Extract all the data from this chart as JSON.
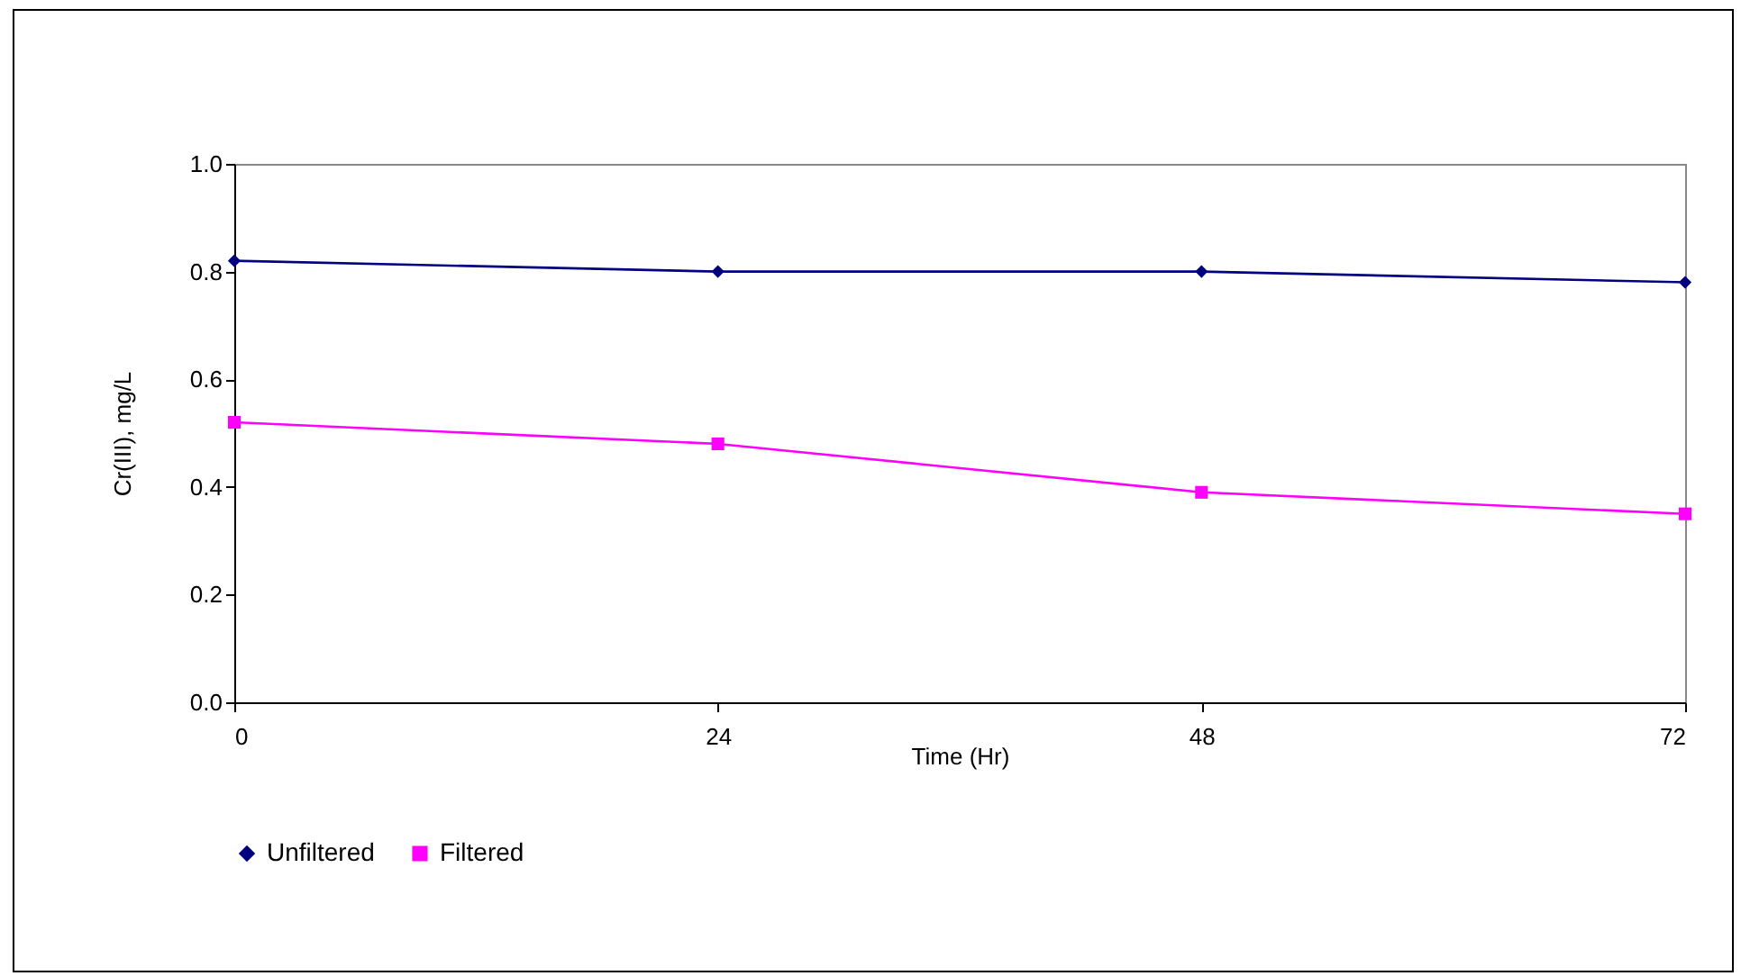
{
  "chart_data": {
    "type": "line",
    "xlabel": "Time (Hr)",
    "ylabel": "Cr(III), mg/L",
    "x": [
      0,
      24,
      48,
      72
    ],
    "series": [
      {
        "name": "Unfiltered",
        "color": "#000080",
        "marker": "diamond",
        "values": [
          0.82,
          0.8,
          0.8,
          0.78
        ]
      },
      {
        "name": "Filtered",
        "color": "#ff00ff",
        "marker": "square",
        "values": [
          0.52,
          0.48,
          0.39,
          0.35
        ]
      }
    ],
    "xlim": [
      0,
      72
    ],
    "xticks": [
      0,
      24,
      48,
      72
    ],
    "ylim": [
      0,
      1
    ],
    "yticks": [
      {
        "value": 0,
        "label": "0.0"
      },
      {
        "value": 0.2,
        "label": "0.2"
      },
      {
        "value": 0.4,
        "label": "0.4"
      },
      {
        "value": 0.6,
        "label": "0.6"
      },
      {
        "value": 0.8,
        "label": "0.8"
      },
      {
        "value": 1,
        "label": "1.0"
      }
    ],
    "legend": "bottom",
    "grid": false,
    "line_style": "solid"
  }
}
